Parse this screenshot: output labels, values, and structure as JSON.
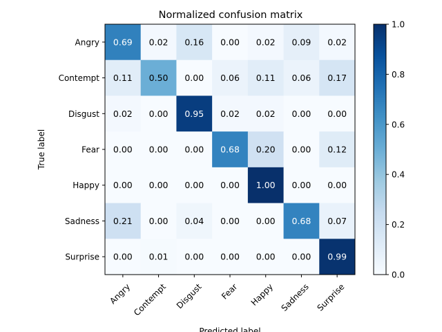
{
  "chart_data": {
    "type": "heatmap",
    "title": "Normalized confusion matrix",
    "xlabel": "Predicted label",
    "ylabel": "True label",
    "x_categories": [
      "Angry",
      "Contempt",
      "Disgust",
      "Fear",
      "Happy",
      "Sadness",
      "Surprise"
    ],
    "y_categories": [
      "Angry",
      "Contempt",
      "Disgust",
      "Fear",
      "Happy",
      "Sadness",
      "Surprise"
    ],
    "values": [
      [
        0.69,
        0.02,
        0.16,
        0.0,
        0.02,
        0.09,
        0.02
      ],
      [
        0.11,
        0.5,
        0.0,
        0.06,
        0.11,
        0.06,
        0.17
      ],
      [
        0.02,
        0.0,
        0.95,
        0.02,
        0.02,
        0.0,
        0.0
      ],
      [
        0.0,
        0.0,
        0.0,
        0.68,
        0.2,
        0.0,
        0.12
      ],
      [
        0.0,
        0.0,
        0.0,
        0.0,
        1.0,
        0.0,
        0.0
      ],
      [
        0.21,
        0.0,
        0.04,
        0.0,
        0.0,
        0.68,
        0.07
      ],
      [
        0.0,
        0.01,
        0.0,
        0.0,
        0.0,
        0.0,
        0.99
      ]
    ],
    "value_labels": [
      [
        "0.69",
        "0.02",
        "0.16",
        "0.00",
        "0.02",
        "0.09",
        "0.02"
      ],
      [
        "0.11",
        "0.50",
        "0.00",
        "0.06",
        "0.11",
        "0.06",
        "0.17"
      ],
      [
        "0.02",
        "0.00",
        "0.95",
        "0.02",
        "0.02",
        "0.00",
        "0.00"
      ],
      [
        "0.00",
        "0.00",
        "0.00",
        "0.68",
        "0.20",
        "0.00",
        "0.12"
      ],
      [
        "0.00",
        "0.00",
        "0.00",
        "0.00",
        "1.00",
        "0.00",
        "0.00"
      ],
      [
        "0.21",
        "0.00",
        "0.04",
        "0.00",
        "0.00",
        "0.68",
        "0.07"
      ],
      [
        "0.00",
        "0.01",
        "0.00",
        "0.00",
        "0.00",
        "0.00",
        "0.99"
      ]
    ],
    "colormap": "Blues",
    "color_range": [
      0.0,
      1.0
    ],
    "colorbar_ticks": [
      "0.0",
      "0.2",
      "0.4",
      "0.6",
      "0.8",
      "1.0"
    ],
    "colorbar_tick_values": [
      0.0,
      0.2,
      0.4,
      0.6,
      0.8,
      1.0
    ],
    "grid": false,
    "text_color_light": "#ffffff",
    "text_color_dark": "#000000"
  }
}
